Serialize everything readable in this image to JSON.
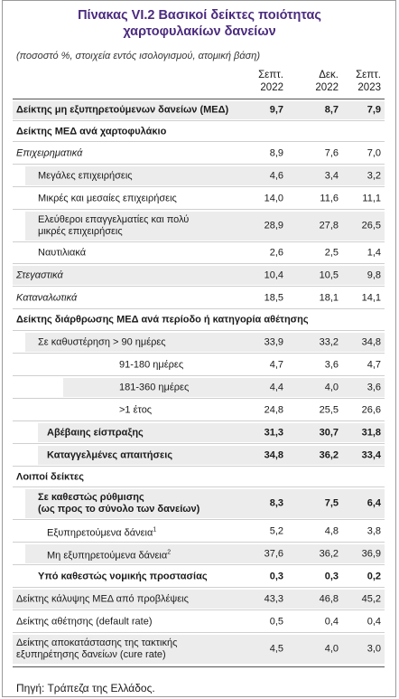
{
  "title_line1": "Πίνακας VI.2  Βασικοί δείκτες ποιότητας",
  "title_line2": "χαρτοφυλακίων δανείων",
  "subtitle": "(ποσοστό %, στοιχεία εντός ισολογισμού, ατομική βάση)",
  "columns": [
    {
      "line1": "Σεπτ.",
      "line2": "2022"
    },
    {
      "line1": "Δεκ.",
      "line2": "2022"
    },
    {
      "line1": "Σεπτ.",
      "line2": "2023"
    }
  ],
  "rows": [
    {
      "label": "Δείκτης μη εξυπηρετούμενων δανείων (ΜΕΔ)",
      "values": [
        "9,7",
        "8,7",
        "7,9"
      ]
    },
    {
      "label": "Δείκτης ΜΕΔ ανά χαρτοφυλάκιο",
      "values": [
        "",
        "",
        ""
      ]
    },
    {
      "label": "Επιχειρηματικά",
      "values": [
        "8,9",
        "7,6",
        "7,0"
      ]
    },
    {
      "label": "Μεγάλες επιχειρήσεις",
      "values": [
        "4,6",
        "3,4",
        "3,2"
      ]
    },
    {
      "label": "Μικρές και μεσαίες επιχειρήσεις",
      "values": [
        "14,0",
        "11,6",
        "11,1"
      ]
    },
    {
      "label": "Ελεύθεροι επαγγελματίες και πολύ",
      "label2": "μικρές επιχειρήσεις",
      "values": [
        "28,9",
        "27,8",
        "26,5"
      ]
    },
    {
      "label": "Ναυτιλιακά",
      "values": [
        "2,6",
        "2,5",
        "1,4"
      ]
    },
    {
      "label": "Στεγαστικά",
      "values": [
        "10,4",
        "10,5",
        "9,8"
      ]
    },
    {
      "label": "Καταναλωτικά",
      "values": [
        "18,5",
        "18,1",
        "14,1"
      ]
    },
    {
      "label": "Δείκτης διάρθρωσης ΜΕΔ ανά περίοδο ή κατηγορία αθέτησης",
      "values": [
        "",
        "",
        ""
      ]
    },
    {
      "label": "Σε καθυστέρηση > 90 ημέρες",
      "values": [
        "33,9",
        "33,2",
        "34,8"
      ]
    },
    {
      "label": "91-180 ημέρες",
      "values": [
        "4,7",
        "3,6",
        "4,7"
      ]
    },
    {
      "label": "181-360 ημέρες",
      "values": [
        "4,4",
        "4,0",
        "3,6"
      ]
    },
    {
      "label": ">1 έτος",
      "values": [
        "24,8",
        "25,5",
        "26,6"
      ]
    },
    {
      "label": "Αβέβαιης είσπραξης",
      "values": [
        "31,3",
        "30,7",
        "31,8"
      ]
    },
    {
      "label": "Καταγγελμένες απαιτήσεις",
      "values": [
        "34,8",
        "36,2",
        "33,4"
      ]
    },
    {
      "label": "Λοιποί δείκτες",
      "values": [
        "",
        "",
        ""
      ]
    },
    {
      "label": "Σε καθεστώς ρύθμισης",
      "label2": "(ως προς το σύνολο των δανείων)",
      "values": [
        "8,3",
        "7,5",
        "6,4"
      ]
    },
    {
      "label": "Εξυπηρετούμενα δάνεια",
      "sup": "1",
      "values": [
        "5,2",
        "4,8",
        "3,8"
      ]
    },
    {
      "label": "Μη εξυπηρετούμενα δάνεια",
      "sup": "2",
      "values": [
        "37,6",
        "36,2",
        "36,9"
      ]
    },
    {
      "label": "Υπό καθεστώς νομικής προστασίας",
      "values": [
        "0,3",
        "0,3",
        "0,2"
      ]
    },
    {
      "label": "Δείκτης κάλυψης ΜΕΔ από προβλέψεις",
      "values": [
        "43,3",
        "46,8",
        "45,2"
      ]
    },
    {
      "label": "Δείκτης αθέτησης (default rate)",
      "values": [
        "0,5",
        "0,4",
        "0,4"
      ]
    },
    {
      "label": "Δείκτης αποκατάστασης της τακτικής",
      "label2": "εξυπηρέτησης δανείων (cure rate)",
      "values": [
        "4,5",
        "4,0",
        "3,0"
      ]
    }
  ],
  "source": "Πηγή: Τράπεζα της Ελλάδος."
}
